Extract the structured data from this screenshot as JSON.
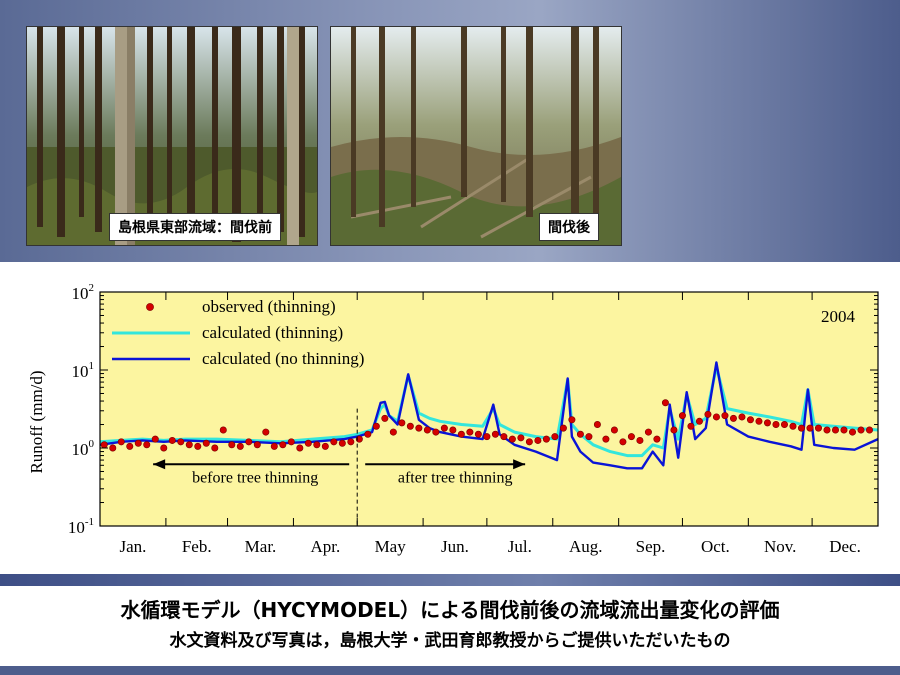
{
  "photos": [
    {
      "caption": "島根県東部流域：間伐前",
      "scene": "dense-cedar-forest"
    },
    {
      "caption": "間伐後",
      "scene": "thinned-forest"
    }
  ],
  "footer": {
    "title": "水循環モデル（HYCYMODEL）による間伐前後の流域流出量変化の評価",
    "subtitle": "水文資料及び写真は，島根大学・武田育郎教授からご提供いただいたもの"
  },
  "colors": {
    "plot_bg": "#fcf5a0",
    "observed": "#d40000",
    "calc_thinning": "#33e6dc",
    "calc_no_thinning": "#0a14d6"
  },
  "chart_data": {
    "type": "line",
    "year_label": "2004",
    "ylabel": "Runoff (mm/d)",
    "yscale": "log",
    "ylim": [
      0.1,
      100
    ],
    "y_ticks": [
      {
        "value": 100,
        "base": "10",
        "exp": "2"
      },
      {
        "value": 10,
        "base": "10",
        "exp": "1"
      },
      {
        "value": 1,
        "base": "10",
        "exp": "0"
      },
      {
        "value": 0.1,
        "base": "10",
        "exp": "-1"
      }
    ],
    "x_unit": "day of year 2004",
    "xlim": [
      0,
      366
    ],
    "months": [
      {
        "label": "Jan.",
        "start": 0
      },
      {
        "label": "Feb.",
        "start": 31
      },
      {
        "label": "Mar.",
        "start": 60
      },
      {
        "label": "Apr.",
        "start": 91
      },
      {
        "label": "May",
        "start": 121
      },
      {
        "label": "Jun.",
        "start": 152
      },
      {
        "label": "Jul.",
        "start": 182
      },
      {
        "label": "Aug.",
        "start": 213
      },
      {
        "label": "Sep.",
        "start": 244
      },
      {
        "label": "Oct.",
        "start": 274
      },
      {
        "label": "Nov.",
        "start": 305
      },
      {
        "label": "Dec.",
        "start": 335
      }
    ],
    "legend": [
      {
        "label": "observed (thinning)",
        "kind": "marker",
        "series": "observed"
      },
      {
        "label": "calculated (thinning)",
        "kind": "line",
        "series": "calc_thinning"
      },
      {
        "label": "calculated (no thinning)",
        "kind": "line",
        "series": "calc_no_thinning"
      }
    ],
    "annotations": {
      "thinning_day": 121,
      "before_label": "before tree thinning",
      "after_label": "after tree thinning",
      "arrow_before": [
        25,
        121
      ],
      "arrow_after": [
        121,
        200
      ]
    },
    "series": [
      {
        "key": "calc_thinning",
        "name": "calculated (thinning)",
        "x": [
          0,
          10,
          20,
          30,
          40,
          55,
          70,
          85,
          100,
          115,
          121,
          128,
          132,
          134,
          136,
          140,
          145,
          150,
          155,
          160,
          170,
          180,
          185,
          188,
          195,
          205,
          215,
          220,
          222,
          226,
          232,
          240,
          248,
          255,
          260,
          265,
          268,
          272,
          276,
          280,
          285,
          290,
          295,
          305,
          315,
          325,
          330,
          333,
          336,
          345,
          355,
          366
        ],
        "y": [
          1.2,
          1.25,
          1.3,
          1.25,
          1.3,
          1.3,
          1.25,
          1.2,
          1.3,
          1.4,
          1.5,
          1.7,
          3.2,
          3.6,
          2.6,
          2.2,
          8.5,
          2.8,
          2.4,
          2.2,
          2.0,
          1.9,
          3.2,
          2.0,
          1.6,
          1.4,
          1.3,
          7.5,
          2.0,
          1.5,
          1.1,
          0.9,
          0.8,
          0.8,
          1.1,
          1.0,
          3.2,
          1.3,
          4.8,
          2.0,
          2.4,
          11,
          3.2,
          2.8,
          2.5,
          2.2,
          2.0,
          5.6,
          2.0,
          1.9,
          1.8,
          1.7
        ]
      },
      {
        "key": "calc_no_thinning",
        "name": "calculated (no thinning)",
        "x": [
          0,
          10,
          20,
          30,
          40,
          55,
          70,
          85,
          100,
          115,
          121,
          128,
          132,
          134,
          136,
          140,
          145,
          150,
          155,
          160,
          170,
          180,
          185,
          188,
          195,
          205,
          215,
          220,
          222,
          226,
          232,
          240,
          248,
          255,
          260,
          265,
          268,
          272,
          276,
          280,
          285,
          290,
          295,
          305,
          315,
          325,
          330,
          333,
          336,
          345,
          355,
          366
        ],
        "y": [
          1.1,
          1.2,
          1.25,
          1.2,
          1.25,
          1.2,
          1.2,
          1.15,
          1.2,
          1.3,
          1.4,
          1.6,
          3.8,
          3.9,
          2.6,
          2.0,
          8.8,
          2.3,
          1.8,
          1.6,
          1.4,
          1.3,
          3.6,
          1.5,
          1.1,
          0.9,
          0.7,
          7.8,
          1.4,
          0.9,
          0.65,
          0.6,
          0.55,
          0.55,
          0.9,
          0.6,
          3.6,
          0.75,
          5.2,
          1.3,
          1.8,
          12.5,
          2.0,
          1.4,
          1.2,
          1.05,
          0.95,
          5.6,
          1.1,
          1.0,
          0.95,
          1.3
        ]
      },
      {
        "key": "observed",
        "name": "observed (thinning)",
        "x": [
          2,
          6,
          10,
          14,
          18,
          22,
          26,
          30,
          34,
          38,
          42,
          46,
          50,
          54,
          58,
          62,
          66,
          70,
          74,
          78,
          82,
          86,
          90,
          94,
          98,
          102,
          106,
          110,
          114,
          118,
          122,
          126,
          130,
          134,
          138,
          142,
          146,
          150,
          154,
          158,
          162,
          166,
          170,
          174,
          178,
          182,
          186,
          190,
          194,
          198,
          202,
          206,
          210,
          214,
          218,
          222,
          226,
          230,
          234,
          238,
          242,
          246,
          250,
          254,
          258,
          262,
          266,
          270,
          274,
          278,
          282,
          286,
          290,
          294,
          298,
          302,
          306,
          310,
          314,
          318,
          322,
          326,
          330,
          334,
          338,
          342,
          346,
          350,
          354,
          358,
          362
        ],
        "y": [
          1.1,
          1.0,
          1.2,
          1.05,
          1.15,
          1.1,
          1.3,
          1.0,
          1.25,
          1.2,
          1.1,
          1.05,
          1.15,
          1.0,
          1.7,
          1.1,
          1.05,
          1.2,
          1.1,
          1.6,
          1.05,
          1.1,
          1.2,
          1.0,
          1.15,
          1.1,
          1.05,
          1.2,
          1.15,
          1.2,
          1.3,
          1.5,
          1.9,
          2.4,
          1.6,
          2.1,
          1.9,
          1.8,
          1.7,
          1.6,
          1.8,
          1.7,
          1.5,
          1.6,
          1.5,
          1.4,
          1.5,
          1.4,
          1.3,
          1.35,
          1.2,
          1.25,
          1.3,
          1.4,
          1.8,
          2.3,
          1.5,
          1.4,
          2.0,
          1.3,
          1.7,
          1.2,
          1.4,
          1.25,
          1.6,
          1.3,
          3.8,
          1.7,
          2.6,
          1.9,
          2.2,
          2.7,
          2.5,
          2.6,
          2.4,
          2.5,
          2.3,
          2.2,
          2.1,
          2.0,
          2.0,
          1.9,
          1.8,
          1.8,
          1.8,
          1.7,
          1.7,
          1.7,
          1.6,
          1.7,
          1.7
        ]
      }
    ]
  }
}
